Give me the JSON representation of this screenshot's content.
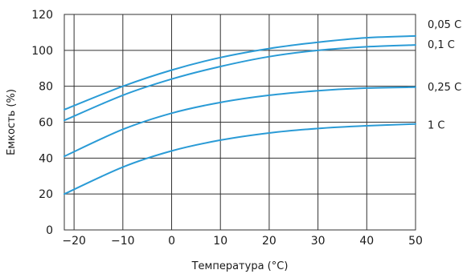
{
  "chart_data": {
    "type": "line",
    "xlabel": "Температура (°C)",
    "ylabel": "Емкость (%)",
    "x": [
      -22,
      -10,
      0,
      10,
      20,
      30,
      40,
      50
    ],
    "xlim": [
      -22,
      50
    ],
    "ylim": [
      0,
      120
    ],
    "xticks": [
      -20,
      -10,
      0,
      10,
      20,
      30,
      40,
      50
    ],
    "yticks": [
      0,
      20,
      40,
      60,
      80,
      100,
      120
    ],
    "grid": true,
    "line_color": "#2a9bd6",
    "series": [
      {
        "name": "0,05 C",
        "values": [
          67,
          80,
          89,
          96,
          101,
          104.5,
          107,
          108
        ]
      },
      {
        "name": "0,1 C",
        "values": [
          61,
          75,
          84,
          91,
          96.5,
          100,
          102,
          103
        ]
      },
      {
        "name": "0,25 C",
        "values": [
          41,
          56,
          65,
          71,
          75,
          77.5,
          79,
          79.5
        ]
      },
      {
        "name": "1 C",
        "values": [
          20,
          35,
          44,
          50,
          54,
          56.5,
          58,
          59
        ]
      }
    ]
  }
}
